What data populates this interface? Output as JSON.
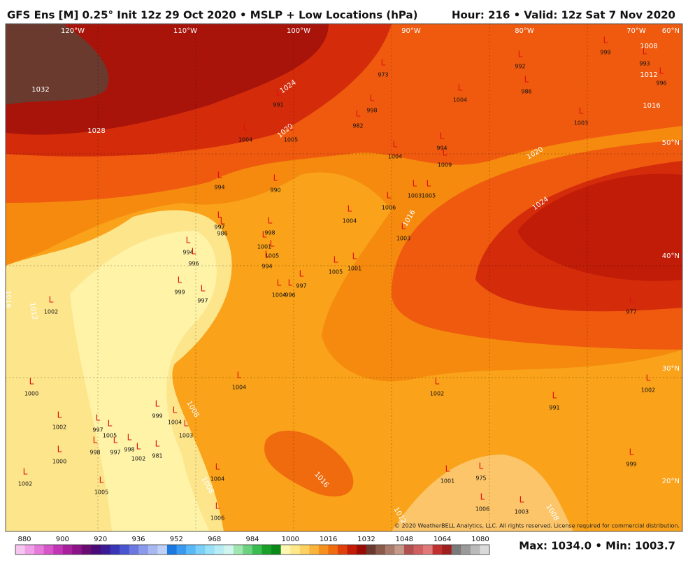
{
  "header": {
    "title": "GFS Ens [M] 0.25° Init 12z 29 Oct 2020 • MSLP + Low Locations (hPa)",
    "valid": "Hour: 216 • Valid: 12z Sat 7 Nov 2020"
  },
  "longitudes": [
    "120°W",
    "110°W",
    "100°W",
    "90°W",
    "80°W",
    "70°W"
  ],
  "latitudes": [
    "60°N",
    "50°N",
    "40°N",
    "30°N",
    "20°N"
  ],
  "contour_labels": [
    1032,
    1028,
    1024,
    1020,
    1016,
    1020,
    1024,
    1016,
    1012,
    1008,
    1016,
    1012,
    1008,
    1008,
    1016,
    1012,
    1008
  ],
  "low_symbol": "L",
  "lows": [
    1004,
    991,
    1005,
    973,
    998,
    982,
    1004,
    994,
    1009,
    994,
    990,
    1003,
    1005,
    1006,
    1004,
    1003,
    997,
    986,
    998,
    1001,
    1005,
    994,
    1005,
    1001,
    997,
    996,
    1004,
    994,
    996,
    999,
    997,
    1002,
    1000,
    1002,
    1000,
    1002,
    1005,
    997,
    998,
    1005,
    997,
    998,
    1002,
    981,
    999,
    1004,
    1003,
    1004,
    1002,
    991,
    999,
    975,
    1001,
    1003,
    1006,
    977,
    1002,
    1003,
    1004,
    992,
    986,
    999,
    993,
    996,
    1006,
    1004
  ],
  "copyright": "© 2020 WeatherBELL Analytics, LLC. All rights reserved. License required for commercial distribution.",
  "colorbar": {
    "ticks": [
      880,
      900,
      920,
      936,
      952,
      968,
      984,
      1000,
      1016,
      1032,
      1048,
      1064,
      1080
    ],
    "colors": [
      "#f7c6f0",
      "#f0a0e6",
      "#e57ad8",
      "#d655c8",
      "#c236b5",
      "#a8209e",
      "#8a1488",
      "#6a0c72",
      "#4a0a78",
      "#3a1a96",
      "#3a36b8",
      "#4a55d0",
      "#6a78e0",
      "#8a9aea",
      "#a8b8f0",
      "#c0d0f6",
      "#1a78e0",
      "#3a9af0",
      "#5ab8f6",
      "#7ad0f8",
      "#9ae0f6",
      "#b8ecf4",
      "#d0f4ee",
      "#a0e6b0",
      "#6ad280",
      "#3abc50",
      "#1aa028",
      "#0a8a1a",
      "#fff6b0",
      "#ffe88a",
      "#fdd060",
      "#fab43c",
      "#f6901c",
      "#f06a0e",
      "#e0400a",
      "#c21c06",
      "#9a0a04",
      "#6a3a30",
      "#8a5a4a",
      "#aa7a6a",
      "#c49a8a",
      "#b05050",
      "#d06060",
      "#e07a7a",
      "#c03030",
      "#a02020",
      "#7a7a7a",
      "#9a9a9a",
      "#bababa",
      "#dadada"
    ]
  },
  "summary": "Max: 1034.0 • Min: 1003.7"
}
